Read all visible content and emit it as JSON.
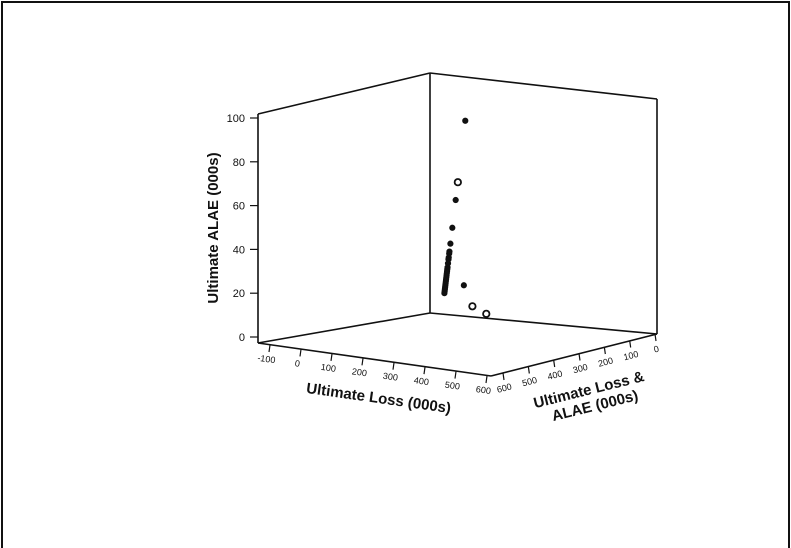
{
  "chart_data": {
    "type": "scatter",
    "projection": "3d",
    "title": "",
    "xlabel": "Ultimate Loss (000s)",
    "ylabel": "Ultimate Loss & ALAE (000s)",
    "zlabel": "Ultimate ALAE (000s)",
    "xlim": [
      -100,
      600
    ],
    "ylim": [
      0,
      600
    ],
    "zlim": [
      0,
      100
    ],
    "x_ticks": [
      -100,
      0,
      100,
      200,
      300,
      400,
      500,
      600
    ],
    "y_ticks": [
      0,
      100,
      200,
      300,
      400,
      500,
      600
    ],
    "z_ticks": [
      0,
      20,
      40,
      60,
      80,
      100
    ],
    "x_tick_labels": [
      "-100",
      "0",
      "100",
      "200",
      "300",
      "400",
      "500",
      "600"
    ],
    "y_tick_labels": [
      "0",
      "100",
      "200",
      "300",
      "400",
      "500",
      "600"
    ],
    "z_tick_labels": [
      "0",
      "20",
      "40",
      "60",
      "80",
      "100"
    ],
    "grid": false,
    "legend": "none",
    "points": [
      {
        "x": 0,
        "y": 97,
        "z": 97,
        "filled": true
      },
      {
        "x": 0,
        "y": 66,
        "z": 66,
        "filled": false
      },
      {
        "x": 0,
        "y": 57,
        "z": 57,
        "filled": true
      },
      {
        "x": 0,
        "y": 43,
        "z": 43,
        "filled": true
      },
      {
        "x": 0,
        "y": 35,
        "z": 35,
        "filled": true
      },
      {
        "x": 0,
        "y": 31,
        "z": 31,
        "filled": true
      },
      {
        "x": 0,
        "y": 30,
        "z": 30,
        "filled": true
      },
      {
        "x": 0,
        "y": 28,
        "z": 28,
        "filled": true
      },
      {
        "x": 0,
        "y": 27,
        "z": 27,
        "filled": true
      },
      {
        "x": 0,
        "y": 25,
        "z": 25,
        "filled": true
      },
      {
        "x": 0,
        "y": 23,
        "z": 23,
        "filled": true
      },
      {
        "x": 0,
        "y": 22,
        "z": 22,
        "filled": true
      },
      {
        "x": 0,
        "y": 21,
        "z": 21,
        "filled": true
      },
      {
        "x": 0,
        "y": 20,
        "z": 20,
        "filled": true
      },
      {
        "x": 0,
        "y": 19,
        "z": 19,
        "filled": true
      },
      {
        "x": 0,
        "y": 18,
        "z": 18,
        "filled": true
      },
      {
        "x": 0,
        "y": 17,
        "z": 17,
        "filled": true
      },
      {
        "x": 0,
        "y": 16,
        "z": 16,
        "filled": true
      },
      {
        "x": 0,
        "y": 15,
        "z": 15,
        "filled": true
      },
      {
        "x": 0,
        "y": 14,
        "z": 14,
        "filled": true
      },
      {
        "x": 0,
        "y": 13,
        "z": 13,
        "filled": true
      },
      {
        "x": 0,
        "y": 12,
        "z": 12,
        "filled": true
      },
      {
        "x": 0,
        "y": 11,
        "z": 11,
        "filled": true
      },
      {
        "x": 25,
        "y": 40,
        "z": 15,
        "filled": true
      },
      {
        "x": 0,
        "y": 10,
        "z": 10,
        "filled": true
      },
      {
        "x": 40,
        "y": 45,
        "z": 5,
        "filled": false
      },
      {
        "x": 60,
        "y": 62,
        "z": 2,
        "filled": false
      }
    ]
  }
}
